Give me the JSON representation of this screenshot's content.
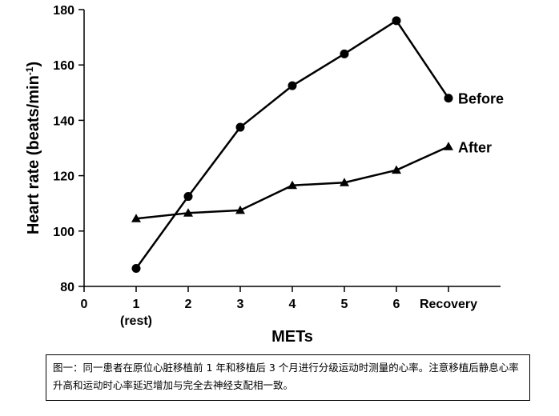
{
  "chart_data": {
    "type": "line",
    "categories": [
      "0",
      "1",
      "2",
      "3",
      "4",
      "5",
      "6",
      "Recovery"
    ],
    "category_sublabels": {
      "1": "(rest)"
    },
    "x_values": [
      1,
      2,
      3,
      4,
      5,
      6,
      7
    ],
    "series": [
      {
        "name": "Before",
        "marker": "circle",
        "values": [
          86.5,
          112.5,
          137.5,
          152.5,
          164,
          176,
          148
        ]
      },
      {
        "name": "After",
        "marker": "triangle",
        "values": [
          104.5,
          106.5,
          107.5,
          116.5,
          117.5,
          122,
          130.5
        ]
      }
    ],
    "xlabel": "METs",
    "ylabel": "Heart rate (beats/min",
    "ylabel_sup": "-1",
    "ylabel_suffix": ")",
    "ylim": [
      80,
      180
    ],
    "yticks": [
      80,
      100,
      120,
      140,
      160,
      180
    ],
    "xlim": [
      0,
      7.7
    ],
    "grid": false,
    "line_color": "#000000"
  },
  "caption": {
    "text": "图一：同一患者在原位心脏移植前 1 年和移植后 3 个月进行分级运动时测量的心率。注意移植后静息心率升高和运动时心率延迟增加与完全去神经支配相一致。"
  }
}
